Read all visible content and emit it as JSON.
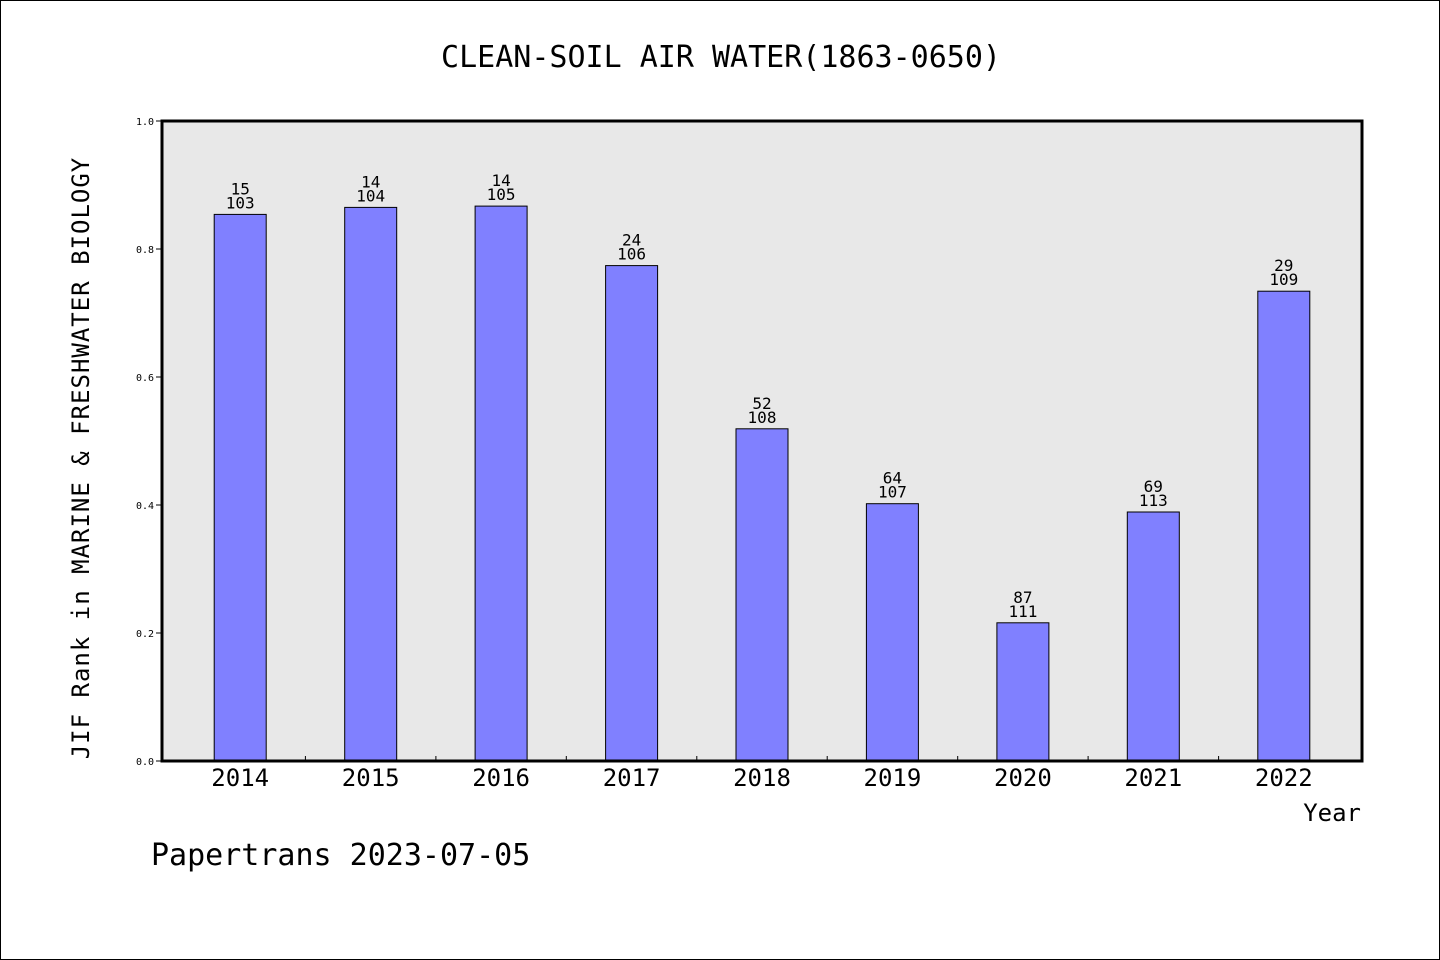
{
  "chart_data": {
    "type": "bar",
    "title": "CLEAN-SOIL AIR WATER(1863-0650)",
    "ylabel": "JIF Rank in MARINE & FRESHWATER BIOLOGY",
    "xlabel": "Year",
    "ylim": [
      0.0,
      1.0
    ],
    "yticks": [
      "0.0",
      "0.2",
      "0.4",
      "0.6",
      "0.8",
      "1.0"
    ],
    "grid": false,
    "categories": [
      "2014",
      "2015",
      "2016",
      "2017",
      "2018",
      "2019",
      "2020",
      "2021",
      "2022"
    ],
    "values": [
      0.854,
      0.865,
      0.867,
      0.774,
      0.519,
      0.402,
      0.216,
      0.389,
      0.734
    ],
    "rank": [
      "15",
      "14",
      "14",
      "24",
      "52",
      "64",
      "87",
      "69",
      "29"
    ],
    "total": [
      "103",
      "104",
      "105",
      "106",
      "108",
      "107",
      "111",
      "113",
      "109"
    ],
    "colors": {
      "bar_fill": "#8080ff",
      "bar_stroke": "#000000",
      "plot_background": "#e8e8e8"
    }
  },
  "footer": "Papertrans 2023-07-05"
}
